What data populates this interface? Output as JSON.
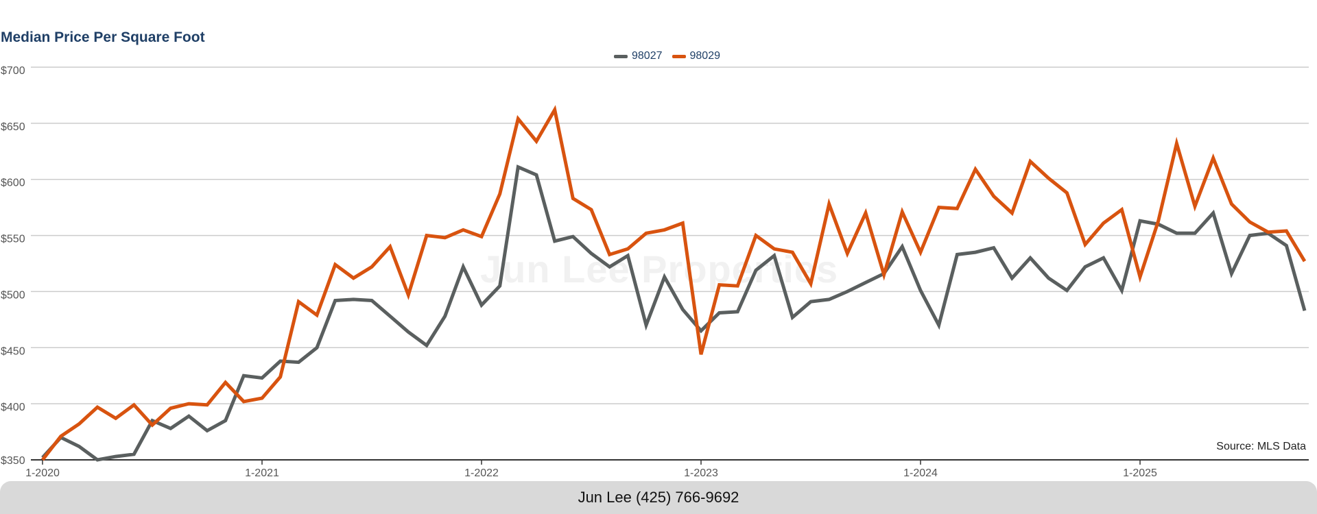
{
  "footer": {
    "text": "Jun Lee (425) 766-9692"
  },
  "watermark": {
    "text": "Jun Lee Properties"
  },
  "source_note": "Source: MLS Data",
  "colors": {
    "s98027": "#5a5f5f",
    "s98029": "#d8530f",
    "grid": "#cccccc",
    "title": "#1f3f66"
  },
  "chart_data": {
    "type": "line",
    "title": "Median Price Per Square Foot",
    "xlabel": "",
    "ylabel": "",
    "ylim": [
      350,
      700
    ],
    "yticks": [
      350,
      400,
      450,
      500,
      550,
      600,
      650,
      700
    ],
    "ytick_labels": [
      "$350",
      "$400",
      "$450",
      "$500",
      "$550",
      "$600",
      "$650",
      "$700"
    ],
    "xlim": [
      "2020-01",
      "2025-10"
    ],
    "xticks": [
      "2020-01",
      "2021-01",
      "2022-01",
      "2023-01",
      "2024-01",
      "2025-01"
    ],
    "xtick_labels": [
      "1-2020",
      "1-2021",
      "1-2022",
      "1-2023",
      "1-2024",
      "1-2025"
    ],
    "grid": true,
    "legend_position": "top-center",
    "x": [
      "2020-01",
      "2020-02",
      "2020-03",
      "2020-04",
      "2020-05",
      "2020-06",
      "2020-07",
      "2020-08",
      "2020-09",
      "2020-10",
      "2020-11",
      "2020-12",
      "2021-01",
      "2021-02",
      "2021-03",
      "2021-04",
      "2021-05",
      "2021-06",
      "2021-07",
      "2021-08",
      "2021-09",
      "2021-10",
      "2021-11",
      "2021-12",
      "2022-01",
      "2022-02",
      "2022-03",
      "2022-04",
      "2022-05",
      "2022-06",
      "2022-07",
      "2022-08",
      "2022-09",
      "2022-10",
      "2022-11",
      "2022-12",
      "2023-01",
      "2023-02",
      "2023-03",
      "2023-04",
      "2023-05",
      "2023-06",
      "2023-07",
      "2023-08",
      "2023-09",
      "2023-10",
      "2023-11",
      "2023-12",
      "2024-01",
      "2024-02",
      "2024-03",
      "2024-04",
      "2024-05",
      "2024-06",
      "2024-07",
      "2024-08",
      "2024-09",
      "2024-10",
      "2024-11",
      "2024-12",
      "2025-01",
      "2025-02",
      "2025-03",
      "2025-04",
      "2025-05",
      "2025-06",
      "2025-07",
      "2025-08",
      "2025-09",
      "2025-10"
    ],
    "series": [
      {
        "name": "98027",
        "color": "#5a5f5f",
        "values": [
          352,
          370,
          362,
          350,
          353,
          355,
          385,
          378,
          389,
          376,
          385,
          425,
          423,
          438,
          437,
          450,
          492,
          493,
          492,
          478,
          464,
          452,
          478,
          522,
          488,
          505,
          611,
          604,
          545,
          549,
          534,
          522,
          532,
          470,
          513,
          484,
          465,
          481,
          482,
          519,
          532,
          477,
          491,
          493,
          500,
          508,
          516,
          540,
          501,
          470,
          533,
          535,
          539,
          512,
          530,
          512,
          501,
          522,
          530,
          501,
          563,
          560,
          552,
          552,
          570,
          516,
          550,
          552,
          541,
          483
        ]
      },
      {
        "name": "98029",
        "color": "#d8530f",
        "values": [
          350,
          371,
          382,
          397,
          387,
          399,
          381,
          396,
          400,
          399,
          419,
          402,
          405,
          424,
          491,
          479,
          524,
          512,
          522,
          540,
          497,
          550,
          548,
          555,
          549,
          587,
          654,
          634,
          662,
          583,
          573,
          533,
          538,
          552,
          555,
          561,
          444,
          506,
          505,
          550,
          538,
          535,
          507,
          578,
          534,
          570,
          515,
          571,
          535,
          575,
          574,
          609,
          585,
          570,
          616,
          601,
          588,
          542,
          561,
          573,
          513,
          563,
          632,
          576,
          619,
          578,
          562,
          553,
          554,
          527
        ]
      }
    ]
  }
}
